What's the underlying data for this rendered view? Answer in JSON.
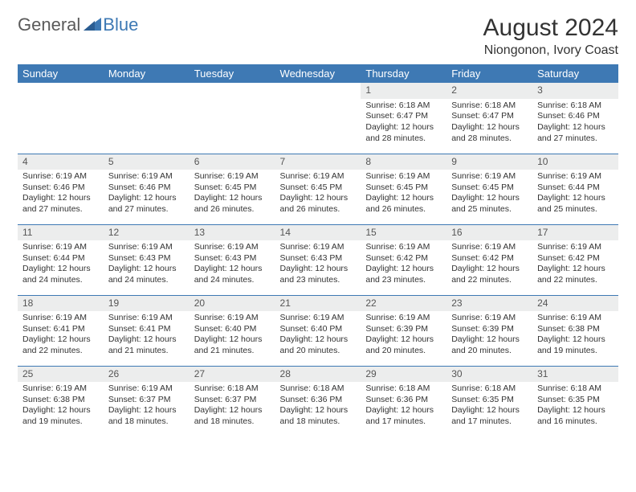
{
  "logo": {
    "text1": "General",
    "text2": "Blue",
    "color1": "#5a5a5a",
    "color2": "#3e79b4"
  },
  "title": "August 2024",
  "location": "Niongonon, Ivory Coast",
  "header_bg": "#3e79b4",
  "header_fg": "#ffffff",
  "daynum_bg": "#eceded",
  "rule_color": "#3e79b4",
  "weekdays": [
    "Sunday",
    "Monday",
    "Tuesday",
    "Wednesday",
    "Thursday",
    "Friday",
    "Saturday"
  ],
  "weeks": [
    [
      {
        "n": "",
        "sunrise": "",
        "sunset": "",
        "daylight": ""
      },
      {
        "n": "",
        "sunrise": "",
        "sunset": "",
        "daylight": ""
      },
      {
        "n": "",
        "sunrise": "",
        "sunset": "",
        "daylight": ""
      },
      {
        "n": "",
        "sunrise": "",
        "sunset": "",
        "daylight": ""
      },
      {
        "n": "1",
        "sunrise": "Sunrise: 6:18 AM",
        "sunset": "Sunset: 6:47 PM",
        "daylight": "Daylight: 12 hours and 28 minutes."
      },
      {
        "n": "2",
        "sunrise": "Sunrise: 6:18 AM",
        "sunset": "Sunset: 6:47 PM",
        "daylight": "Daylight: 12 hours and 28 minutes."
      },
      {
        "n": "3",
        "sunrise": "Sunrise: 6:18 AM",
        "sunset": "Sunset: 6:46 PM",
        "daylight": "Daylight: 12 hours and 27 minutes."
      }
    ],
    [
      {
        "n": "4",
        "sunrise": "Sunrise: 6:19 AM",
        "sunset": "Sunset: 6:46 PM",
        "daylight": "Daylight: 12 hours and 27 minutes."
      },
      {
        "n": "5",
        "sunrise": "Sunrise: 6:19 AM",
        "sunset": "Sunset: 6:46 PM",
        "daylight": "Daylight: 12 hours and 27 minutes."
      },
      {
        "n": "6",
        "sunrise": "Sunrise: 6:19 AM",
        "sunset": "Sunset: 6:45 PM",
        "daylight": "Daylight: 12 hours and 26 minutes."
      },
      {
        "n": "7",
        "sunrise": "Sunrise: 6:19 AM",
        "sunset": "Sunset: 6:45 PM",
        "daylight": "Daylight: 12 hours and 26 minutes."
      },
      {
        "n": "8",
        "sunrise": "Sunrise: 6:19 AM",
        "sunset": "Sunset: 6:45 PM",
        "daylight": "Daylight: 12 hours and 26 minutes."
      },
      {
        "n": "9",
        "sunrise": "Sunrise: 6:19 AM",
        "sunset": "Sunset: 6:45 PM",
        "daylight": "Daylight: 12 hours and 25 minutes."
      },
      {
        "n": "10",
        "sunrise": "Sunrise: 6:19 AM",
        "sunset": "Sunset: 6:44 PM",
        "daylight": "Daylight: 12 hours and 25 minutes."
      }
    ],
    [
      {
        "n": "11",
        "sunrise": "Sunrise: 6:19 AM",
        "sunset": "Sunset: 6:44 PM",
        "daylight": "Daylight: 12 hours and 24 minutes."
      },
      {
        "n": "12",
        "sunrise": "Sunrise: 6:19 AM",
        "sunset": "Sunset: 6:43 PM",
        "daylight": "Daylight: 12 hours and 24 minutes."
      },
      {
        "n": "13",
        "sunrise": "Sunrise: 6:19 AM",
        "sunset": "Sunset: 6:43 PM",
        "daylight": "Daylight: 12 hours and 24 minutes."
      },
      {
        "n": "14",
        "sunrise": "Sunrise: 6:19 AM",
        "sunset": "Sunset: 6:43 PM",
        "daylight": "Daylight: 12 hours and 23 minutes."
      },
      {
        "n": "15",
        "sunrise": "Sunrise: 6:19 AM",
        "sunset": "Sunset: 6:42 PM",
        "daylight": "Daylight: 12 hours and 23 minutes."
      },
      {
        "n": "16",
        "sunrise": "Sunrise: 6:19 AM",
        "sunset": "Sunset: 6:42 PM",
        "daylight": "Daylight: 12 hours and 22 minutes."
      },
      {
        "n": "17",
        "sunrise": "Sunrise: 6:19 AM",
        "sunset": "Sunset: 6:42 PM",
        "daylight": "Daylight: 12 hours and 22 minutes."
      }
    ],
    [
      {
        "n": "18",
        "sunrise": "Sunrise: 6:19 AM",
        "sunset": "Sunset: 6:41 PM",
        "daylight": "Daylight: 12 hours and 22 minutes."
      },
      {
        "n": "19",
        "sunrise": "Sunrise: 6:19 AM",
        "sunset": "Sunset: 6:41 PM",
        "daylight": "Daylight: 12 hours and 21 minutes."
      },
      {
        "n": "20",
        "sunrise": "Sunrise: 6:19 AM",
        "sunset": "Sunset: 6:40 PM",
        "daylight": "Daylight: 12 hours and 21 minutes."
      },
      {
        "n": "21",
        "sunrise": "Sunrise: 6:19 AM",
        "sunset": "Sunset: 6:40 PM",
        "daylight": "Daylight: 12 hours and 20 minutes."
      },
      {
        "n": "22",
        "sunrise": "Sunrise: 6:19 AM",
        "sunset": "Sunset: 6:39 PM",
        "daylight": "Daylight: 12 hours and 20 minutes."
      },
      {
        "n": "23",
        "sunrise": "Sunrise: 6:19 AM",
        "sunset": "Sunset: 6:39 PM",
        "daylight": "Daylight: 12 hours and 20 minutes."
      },
      {
        "n": "24",
        "sunrise": "Sunrise: 6:19 AM",
        "sunset": "Sunset: 6:38 PM",
        "daylight": "Daylight: 12 hours and 19 minutes."
      }
    ],
    [
      {
        "n": "25",
        "sunrise": "Sunrise: 6:19 AM",
        "sunset": "Sunset: 6:38 PM",
        "daylight": "Daylight: 12 hours and 19 minutes."
      },
      {
        "n": "26",
        "sunrise": "Sunrise: 6:19 AM",
        "sunset": "Sunset: 6:37 PM",
        "daylight": "Daylight: 12 hours and 18 minutes."
      },
      {
        "n": "27",
        "sunrise": "Sunrise: 6:18 AM",
        "sunset": "Sunset: 6:37 PM",
        "daylight": "Daylight: 12 hours and 18 minutes."
      },
      {
        "n": "28",
        "sunrise": "Sunrise: 6:18 AM",
        "sunset": "Sunset: 6:36 PM",
        "daylight": "Daylight: 12 hours and 18 minutes."
      },
      {
        "n": "29",
        "sunrise": "Sunrise: 6:18 AM",
        "sunset": "Sunset: 6:36 PM",
        "daylight": "Daylight: 12 hours and 17 minutes."
      },
      {
        "n": "30",
        "sunrise": "Sunrise: 6:18 AM",
        "sunset": "Sunset: 6:35 PM",
        "daylight": "Daylight: 12 hours and 17 minutes."
      },
      {
        "n": "31",
        "sunrise": "Sunrise: 6:18 AM",
        "sunset": "Sunset: 6:35 PM",
        "daylight": "Daylight: 12 hours and 16 minutes."
      }
    ]
  ]
}
